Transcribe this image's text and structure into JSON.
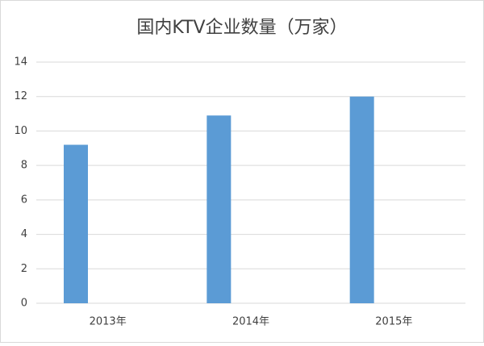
{
  "chart_data": {
    "type": "bar",
    "title": "国内KTV企业数量（万家）",
    "categories": [
      "2013年",
      "2014年",
      "2015年"
    ],
    "values": [
      9.2,
      10.9,
      12.0
    ],
    "color": "#5b9bd5",
    "ylim": [
      0,
      14
    ],
    "yticks": [
      0,
      2,
      4,
      6,
      8,
      10,
      12,
      14
    ],
    "grid": true
  }
}
